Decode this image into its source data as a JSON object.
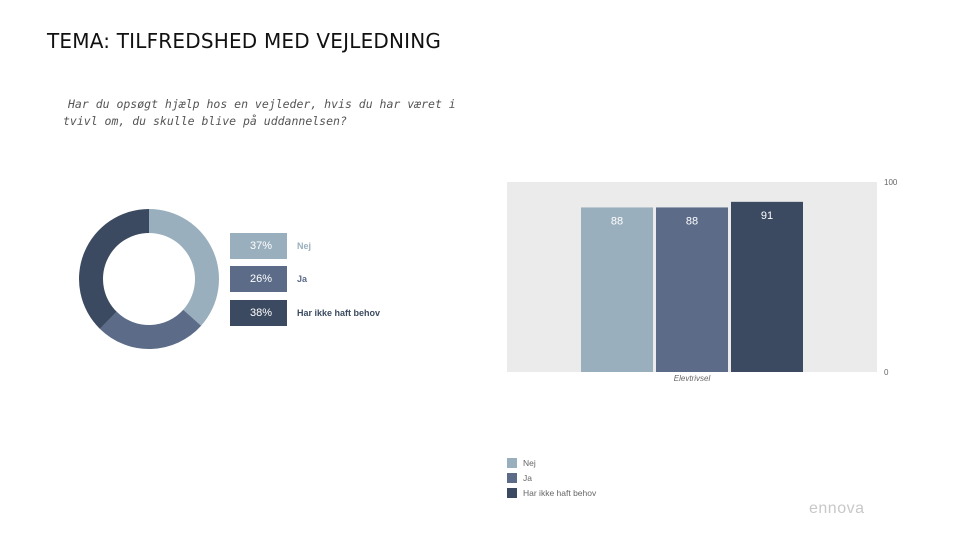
{
  "header": {
    "title": "TEMA: TILFREDSHED MED VEJLEDNING"
  },
  "question": {
    "line1": "Har du opsøgt hjælp hos en vejleder, hvis du har været i",
    "line2": "tvivl om, du skulle blive på uddannelsen?"
  },
  "colors": {
    "nej": "#9aafbd",
    "ja": "#5b6b88",
    "har_ikke": "#3b4a60",
    "panel": "#ebebeb"
  },
  "chart_data": [
    {
      "type": "pie",
      "categories": [
        "Nej",
        "Ja",
        "Har ikke haft behov"
      ],
      "values": [
        37,
        26,
        38
      ],
      "labels": [
        "37%",
        "26%",
        "38%"
      ]
    },
    {
      "type": "bar",
      "categories": [
        "Elevtrivsel"
      ],
      "series": [
        {
          "name": "Nej",
          "values": [
            88
          ]
        },
        {
          "name": "Ja",
          "values": [
            88
          ]
        },
        {
          "name": "Har ikke haft behov",
          "values": [
            91
          ]
        }
      ],
      "ylim": [
        0,
        100
      ],
      "yticks": [
        "100",
        "0"
      ],
      "xlabel": "Elevtrivsel"
    }
  ],
  "logo": {
    "text": "ennova"
  }
}
